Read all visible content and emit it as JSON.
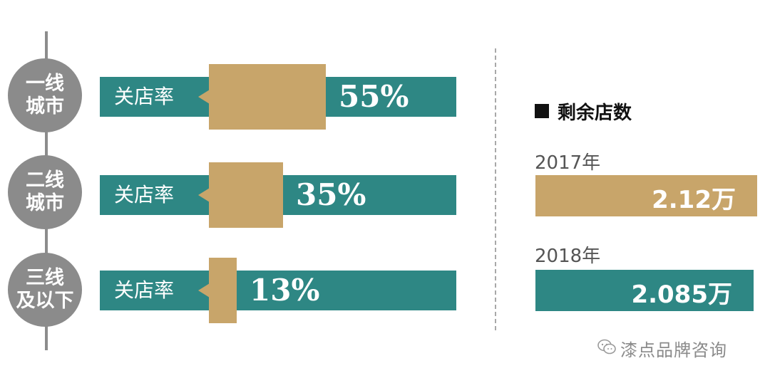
{
  "chart_data": [
    {
      "type": "bar",
      "categories": [
        "一线城市",
        "二线城市",
        "三线及以下"
      ],
      "tiers": [
        {
          "line1": "一线",
          "line2": "城市"
        },
        {
          "line1": "二线",
          "line2": "城市"
        },
        {
          "line1": "三线",
          "line2": "及以下"
        }
      ],
      "bar_label": "关店率",
      "values": [
        55,
        35,
        13
      ],
      "value_labels": [
        "55%",
        "35%",
        "13%"
      ],
      "colors": {
        "track": "#2e8784",
        "fill": "#c8a56a",
        "badge": "#8b8b8b"
      }
    },
    {
      "type": "bar",
      "title": "剩余店数",
      "categories": [
        "2017年",
        "2018年"
      ],
      "values": [
        2.12,
        2.085
      ],
      "value_labels": [
        "2.12万",
        "2.085万"
      ],
      "colors": [
        "#c8a56a",
        "#2e8784"
      ]
    }
  ],
  "watermark": "漆点品牌咨询"
}
